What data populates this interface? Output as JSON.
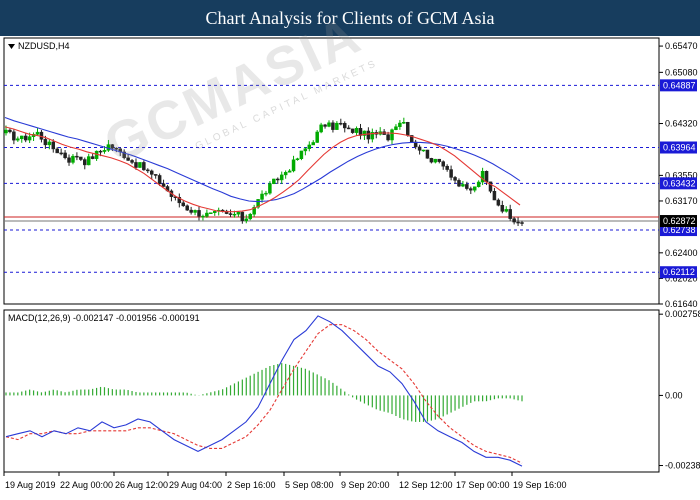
{
  "header": {
    "title": "Chart Analysis for Clients of GCM Asia"
  },
  "watermark": {
    "text": "GCMASIA",
    "sub": "GLOBAL CAPITAL MARKETS"
  },
  "colors": {
    "header_bg": "#173d5e",
    "bull_candle": "#00aa00",
    "bear_candle": "#222222",
    "ma_fast": "#e53935",
    "ma_slow": "#2a3bd6",
    "level_line": "#1a1ad6",
    "macd_line": "#2a3bd6",
    "signal_line": "#e53935",
    "histogram": "#33aa33"
  },
  "chart_data": [
    {
      "type": "candlestick",
      "title": "NZDUSD,H4",
      "ylim": [
        0.6164,
        0.6559
      ],
      "y_ticks": [
        "0.65470",
        "0.65080",
        "0.64320",
        "0.63550",
        "0.63170",
        "0.62400",
        "0.62020",
        "0.61640"
      ],
      "x_tick_labels": [
        "19 Aug 2019",
        "22 Aug 00:00",
        "26 Aug 12:00",
        "29 Aug 04:00",
        "2 Sep 16:00",
        "5 Sep 08:00",
        "9 Sep 20:00",
        "12 Sep 12:00",
        "17 Sep 00:00",
        "19 Sep 16:00"
      ],
      "levels": [
        {
          "value": 0.64887,
          "label": "0.64887"
        },
        {
          "value": 0.63964,
          "label": "0.63964"
        },
        {
          "value": 0.63432,
          "label": "0.63432"
        },
        {
          "value": 0.62738,
          "label": "0.62738"
        },
        {
          "value": 0.62112,
          "label": "0.62112"
        }
      ],
      "current_price": {
        "value": 0.62872,
        "label": "0.62872"
      },
      "close_path": [
        0.6418,
        0.6412,
        0.6409,
        0.6414,
        0.6418,
        0.6404,
        0.6395,
        0.6388,
        0.6378,
        0.6385,
        0.6375,
        0.6384,
        0.6392,
        0.6401,
        0.6391,
        0.6385,
        0.6374,
        0.6368,
        0.6359,
        0.6349,
        0.6338,
        0.6322,
        0.6314,
        0.6305,
        0.63,
        0.6297,
        0.6296,
        0.63,
        0.6295,
        0.6298,
        0.6288,
        0.6305,
        0.6322,
        0.6335,
        0.6348,
        0.6358,
        0.637,
        0.6385,
        0.6398,
        0.6413,
        0.6432,
        0.6426,
        0.6433,
        0.642,
        0.6423,
        0.6416,
        0.6413,
        0.6418,
        0.6409,
        0.6432,
        0.6438,
        0.6408,
        0.6396,
        0.6386,
        0.6374,
        0.6375,
        0.6358,
        0.6341,
        0.6333,
        0.6335,
        0.6358,
        0.6331,
        0.6313,
        0.6301,
        0.6291,
        0.6287
      ],
      "ma_fast": [
        0.6427,
        0.6424,
        0.642,
        0.6416,
        0.6414,
        0.6411,
        0.6406,
        0.6401,
        0.6397,
        0.6394,
        0.639,
        0.6387,
        0.6384,
        0.6381,
        0.6377,
        0.6372,
        0.6365,
        0.6358,
        0.6349,
        0.634,
        0.6331,
        0.6323,
        0.6317,
        0.6312,
        0.6308,
        0.6305,
        0.6302,
        0.6301,
        0.6301,
        0.6302,
        0.6304,
        0.6309,
        0.6315,
        0.6322,
        0.633,
        0.6339,
        0.6349,
        0.6362,
        0.6374,
        0.6386,
        0.6396,
        0.6404,
        0.641,
        0.6414,
        0.6416,
        0.6417,
        0.6418,
        0.6418,
        0.6417,
        0.6415,
        0.6412,
        0.6408,
        0.6404,
        0.6399,
        0.6392,
        0.6384,
        0.6374,
        0.6364,
        0.6354,
        0.6344,
        0.6338,
        0.6329,
        0.632,
        0.6311
      ],
      "ma_slow": [
        0.6441,
        0.6436,
        0.6432,
        0.6428,
        0.6424,
        0.642,
        0.6416,
        0.6412,
        0.6409,
        0.6405,
        0.6401,
        0.6397,
        0.6393,
        0.6389,
        0.6385,
        0.638,
        0.6375,
        0.637,
        0.6365,
        0.6359,
        0.6353,
        0.6347,
        0.6341,
        0.6335,
        0.633,
        0.6324,
        0.632,
        0.6317,
        0.6316,
        0.6317,
        0.6319,
        0.6323,
        0.6328,
        0.6335,
        0.6343,
        0.6351,
        0.636,
        0.6368,
        0.6376,
        0.6383,
        0.6389,
        0.6394,
        0.6398,
        0.6401,
        0.6403,
        0.6404,
        0.6404,
        0.6403,
        0.6401,
        0.6398,
        0.6394,
        0.639,
        0.6385,
        0.6379,
        0.6372,
        0.6364,
        0.6356,
        0.6347
      ]
    },
    {
      "type": "macd",
      "title": "MACD(12,26,9) -0.002147 -0.001956 -0.000191",
      "ylim": [
        -0.0026,
        0.0029
      ],
      "y_ticks": [
        "0.002758",
        "0.00",
        "-0.00238"
      ],
      "macd": [
        -0.0014,
        -0.0013,
        -0.0012,
        -0.0014,
        -0.0012,
        -0.0013,
        -0.0011,
        -0.0012,
        -0.0009,
        -0.0011,
        -0.001,
        -0.0008,
        -0.0009,
        -0.0012,
        -0.0015,
        -0.0017,
        -0.0019,
        -0.0017,
        -0.0015,
        -0.0012,
        -0.0009,
        -0.0004,
        0.0004,
        0.0012,
        0.0019,
        0.0022,
        0.0027,
        0.0025,
        0.0022,
        0.0018,
        0.0014,
        0.001,
        0.0008,
        0.0004,
        -0.0002,
        -0.0009,
        -0.0012,
        -0.0014,
        -0.0016,
        -0.0019,
        -0.0021,
        -0.0021,
        -0.0022,
        -0.0024
      ],
      "signal": [
        -0.0014,
        -0.0015,
        -0.0013,
        -0.0013,
        -0.0012,
        -0.0013,
        -0.0013,
        -0.0012,
        -0.0012,
        -0.0012,
        -0.0012,
        -0.0011,
        -0.0011,
        -0.0012,
        -0.0013,
        -0.0015,
        -0.0017,
        -0.0018,
        -0.0018,
        -0.0016,
        -0.0014,
        -0.001,
        -0.0005,
        0.0002,
        0.0009,
        0.0015,
        0.0021,
        0.0024,
        0.0024,
        0.0022,
        0.0019,
        0.0015,
        0.0012,
        0.0009,
        0.0004,
        -0.0002,
        -0.0007,
        -0.0011,
        -0.0014,
        -0.0017,
        -0.0019,
        -0.002,
        -0.0021,
        -0.0023
      ],
      "histogram": [
        0.0001,
        0.0001,
        0.0002,
        0.0001,
        0.0002,
        0.0001,
        0.0002,
        0.0002,
        0.0003,
        0.0002,
        0.0002,
        0.0001,
        0.0001,
        0.0001,
        0.0001,
        0.0001,
        0,
        0.0001,
        0.0002,
        0.0004,
        0.0006,
        0.0008,
        0.001,
        0.0011,
        0.001,
        0.0009,
        0.0007,
        0.0005,
        0.0002,
        -0.0001,
        -0.0003,
        -0.0005,
        -0.0006,
        -0.0008,
        -0.0009,
        -0.0009,
        -0.0008,
        -0.0006,
        -0.0004,
        -0.0002,
        -0.0002,
        -0.0001,
        -0.0001,
        -0.0002
      ]
    }
  ]
}
